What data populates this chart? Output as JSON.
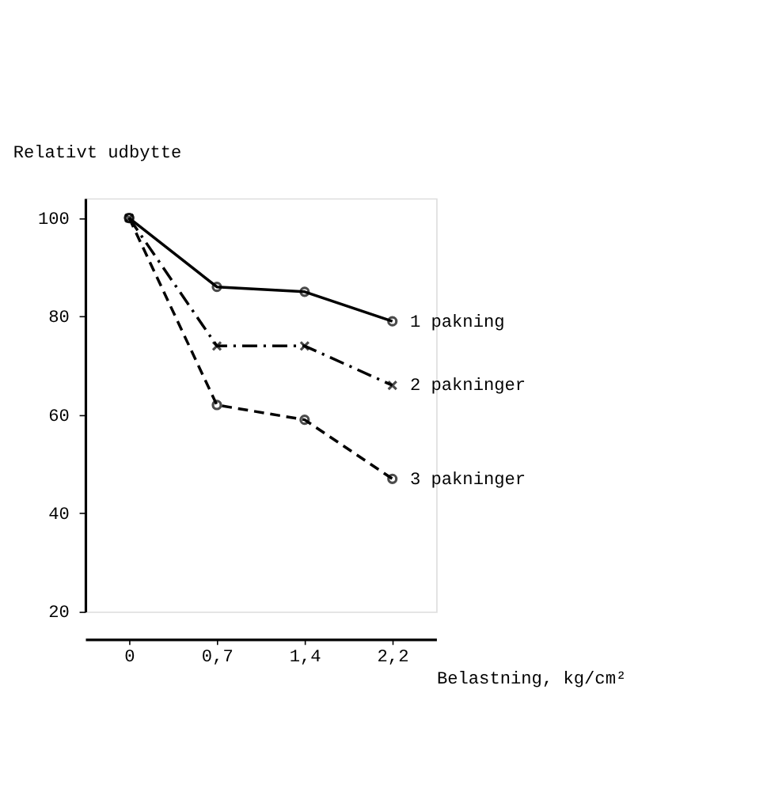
{
  "chart_data": {
    "type": "line",
    "xlabel": "Belastning, kg/cm²",
    "ylabel": "Relativt udbytte",
    "categories": [
      "0",
      "0,7",
      "1,4",
      "2,2"
    ],
    "ylim": [
      20,
      104
    ],
    "yticks": [
      20,
      40,
      60,
      80,
      100
    ],
    "grid": false,
    "legend": false,
    "series": [
      {
        "name": "1 pakning",
        "color": "#000000",
        "marker": "circle",
        "line_style": "solid",
        "values": [
          100,
          86,
          85,
          79
        ]
      },
      {
        "name": "2 pakninger",
        "color": "#000000",
        "marker": "cross",
        "line_style": "dashdot",
        "values": [
          100,
          74,
          74,
          66
        ]
      },
      {
        "name": "3 pakninger",
        "color": "#000000",
        "marker": "circle",
        "line_style": "dashed",
        "values": [
          100,
          62,
          59,
          47
        ]
      }
    ]
  }
}
